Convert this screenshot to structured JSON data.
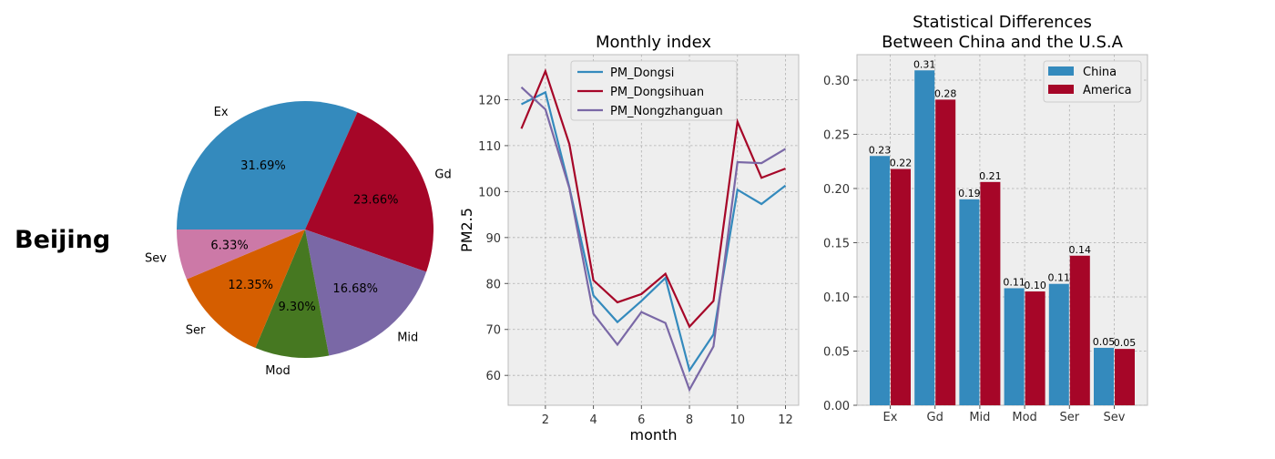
{
  "figure": {
    "city_label": "Beijing"
  },
  "chart_data": [
    {
      "type": "pie",
      "labels": [
        "Ex",
        "Gd",
        "Mid",
        "Mod",
        "Ser",
        "Sev"
      ],
      "values": [
        31.69,
        23.66,
        16.68,
        9.3,
        12.35,
        6.33
      ],
      "pct_labels": [
        "31.69%",
        "23.66%",
        "16.68%",
        "9.30%",
        "12.35%",
        "6.33%"
      ],
      "colors": [
        "#348abd",
        "#a60628",
        "#7a68a6",
        "#467821",
        "#d55e00",
        "#cc79a7"
      ],
      "start_angle_deg": 180,
      "direction": "clockwise"
    },
    {
      "type": "line",
      "title": "Monthly index",
      "xlabel": "month",
      "ylabel": "PM2.5",
      "x": [
        1,
        2,
        3,
        4,
        5,
        6,
        7,
        8,
        9,
        10,
        11,
        12
      ],
      "xticks": [
        2,
        4,
        6,
        8,
        10,
        12
      ],
      "yticks": [
        60,
        70,
        80,
        90,
        100,
        110,
        120
      ],
      "xlim": [
        0.45,
        12.55
      ],
      "ylim": [
        53.5,
        129.8
      ],
      "grid": true,
      "legend": "upper center",
      "series": [
        {
          "name": "PM_Dongsi",
          "color": "#348abd",
          "values": [
            119.0,
            121.6,
            100.9,
            77.4,
            71.6,
            76.2,
            81.2,
            61.1,
            68.9,
            100.4,
            97.3,
            101.3
          ]
        },
        {
          "name": "PM_Dongsihuan",
          "color": "#a60628",
          "values": [
            113.7,
            126.2,
            110.3,
            80.7,
            75.9,
            77.7,
            82.1,
            70.6,
            76.2,
            115.2,
            103.0,
            105.0
          ]
        },
        {
          "name": "PM_Nongzhanguan",
          "color": "#7a68a6",
          "values": [
            122.7,
            117.9,
            100.7,
            73.4,
            66.7,
            73.8,
            71.4,
            56.9,
            66.3,
            106.4,
            106.2,
            109.3
          ]
        }
      ]
    },
    {
      "type": "bar",
      "title": "Statistical Differences\nBetween China and the U.S.A",
      "title_lines": [
        "Statistical Differences",
        "Between China and the U.S.A"
      ],
      "categories": [
        "Ex",
        "Gd",
        "Mid",
        "Mod",
        "Ser",
        "Sev"
      ],
      "yticks": [
        0.0,
        0.05,
        0.1,
        0.15,
        0.2,
        0.25,
        0.3
      ],
      "ytick_labels": [
        "0.00",
        "0.05",
        "0.10",
        "0.15",
        "0.20",
        "0.25",
        "0.30"
      ],
      "ylim": [
        0,
        0.3235
      ],
      "grid": true,
      "legend": "upper right",
      "series": [
        {
          "name": "China",
          "color": "#348abd",
          "values": [
            0.23,
            0.309,
            0.19,
            0.108,
            0.112,
            0.053
          ],
          "labels": [
            "0.23",
            "0.31",
            "0.19",
            "0.11",
            "0.11",
            "0.05"
          ]
        },
        {
          "name": "America",
          "color": "#a60628",
          "values": [
            0.218,
            0.282,
            0.206,
            0.105,
            0.138,
            0.052
          ],
          "labels": [
            "0.22",
            "0.28",
            "0.21",
            "0.10",
            "0.14",
            "0.05"
          ]
        }
      ]
    }
  ]
}
